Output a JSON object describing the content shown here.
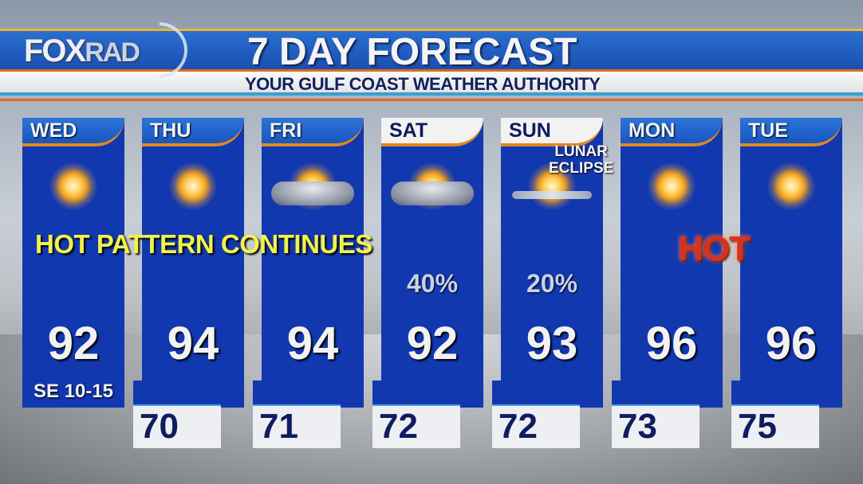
{
  "header": {
    "logo": {
      "fox": "FOX",
      "rad": "RAD"
    },
    "title": "7 DAY FORECAST",
    "subtitle": "YOUR GULF COAST WEATHER AUTHORITY"
  },
  "annotations": {
    "pattern": "HOT PATTERN CONTINUES",
    "eclipse_line1": "LUNAR",
    "eclipse_line2": "ECLIPSE",
    "hot": "HOT"
  },
  "days": [
    {
      "day": "WED",
      "icon": "sunny-icon",
      "high": "92",
      "low": null,
      "wind": "SE 10-15"
    },
    {
      "day": "THU",
      "icon": "sunny-icon",
      "high": "94",
      "low": "70"
    },
    {
      "day": "FRI",
      "icon": "cloudy-icon",
      "high": "94",
      "low": "71"
    },
    {
      "day": "SAT",
      "icon": "partly-cloudy-icon",
      "high": "92",
      "low": "72",
      "precip": "40%"
    },
    {
      "day": "SUN",
      "icon": "sun-thin-clouds-icon",
      "high": "93",
      "low": "72",
      "precip": "20%"
    },
    {
      "day": "MON",
      "icon": "sunny-icon",
      "high": "96",
      "low": "73"
    },
    {
      "day": "TUE",
      "icon": "sunny-icon",
      "high": "96",
      "low": "75"
    }
  ],
  "colors": {
    "panel": "#1238b0",
    "header": "#1a56c0",
    "accent": "#e08820",
    "low_text": "#101c60",
    "note": "#f2f24a"
  }
}
